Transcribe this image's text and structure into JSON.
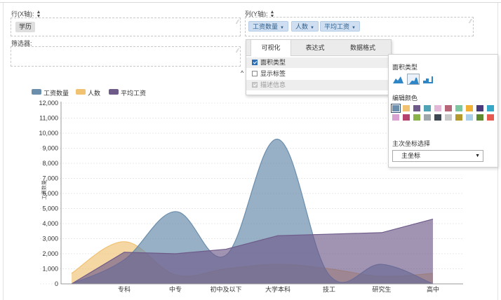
{
  "fields": {
    "rows_label": "行(X轴):",
    "columns_label": "列(Y轴):",
    "filter_label": "筛选器:",
    "row_pills": [
      "学历"
    ],
    "column_pills": [
      "工资数量",
      "人数",
      "平均工资"
    ]
  },
  "popup": {
    "tabs": [
      "可视化",
      "表达式",
      "数据格式"
    ],
    "options": [
      {
        "label": "面积类型",
        "checked": true
      },
      {
        "label": "显示标签",
        "checked": false
      },
      {
        "label": "描述信息",
        "checked": true,
        "disabled": true
      }
    ]
  },
  "side_panel": {
    "area_type_title": "面积类型",
    "area_types": [
      "area-smooth-icon",
      "area-spline-icon",
      "area-step-icon"
    ],
    "colors_title": "编辑颜色",
    "swatches": [
      "#6b8ead",
      "#f0c271",
      "#6e5b8a",
      "#4fa3b5",
      "#e3b7d8",
      "#b7667a",
      "#7cc79f",
      "#f2b134",
      "#4b3a7a",
      "#35a7c7",
      "#d9a0d2",
      "#b5426e",
      "#8ab34a",
      "#a0a7ab",
      "#3d4852",
      "#c8c8c8",
      "#b49a2c",
      "#a9d0e8",
      "#5f8a2f",
      "#e85a4f"
    ],
    "selected_swatch": 0,
    "axis_title": "主次坐标选择",
    "axis_value": "主坐标"
  },
  "chart_data": {
    "type": "area",
    "categories": [
      "专科",
      "中专",
      "初中及以下",
      "大学本科",
      "技工",
      "研究生",
      "高中"
    ],
    "ylabel": "工资数量",
    "ylim": [
      0,
      12000
    ],
    "yticks": [
      "0",
      "1,000",
      "2,000",
      "3,000",
      "4,000",
      "5,000",
      "6,000",
      "7,000",
      "8,000",
      "9,000",
      "10,000",
      "11,000",
      "12,000"
    ],
    "legend_position": "top-left",
    "series": [
      {
        "name": "工资数量",
        "color": "#6b8ead",
        "values": [
          1600,
          4800,
          1900,
          9600,
          600,
          1300,
          0
        ]
      },
      {
        "name": "人数",
        "color": "#f0c271",
        "values": [
          2800,
          600,
          1000,
          1300,
          1000,
          500,
          700
        ]
      },
      {
        "name": "平均工资",
        "color": "#6e5b8a",
        "values": [
          2100,
          2000,
          2300,
          3200,
          3300,
          3400,
          4300
        ]
      }
    ],
    "start_values": [
      0,
      700,
      0
    ]
  }
}
